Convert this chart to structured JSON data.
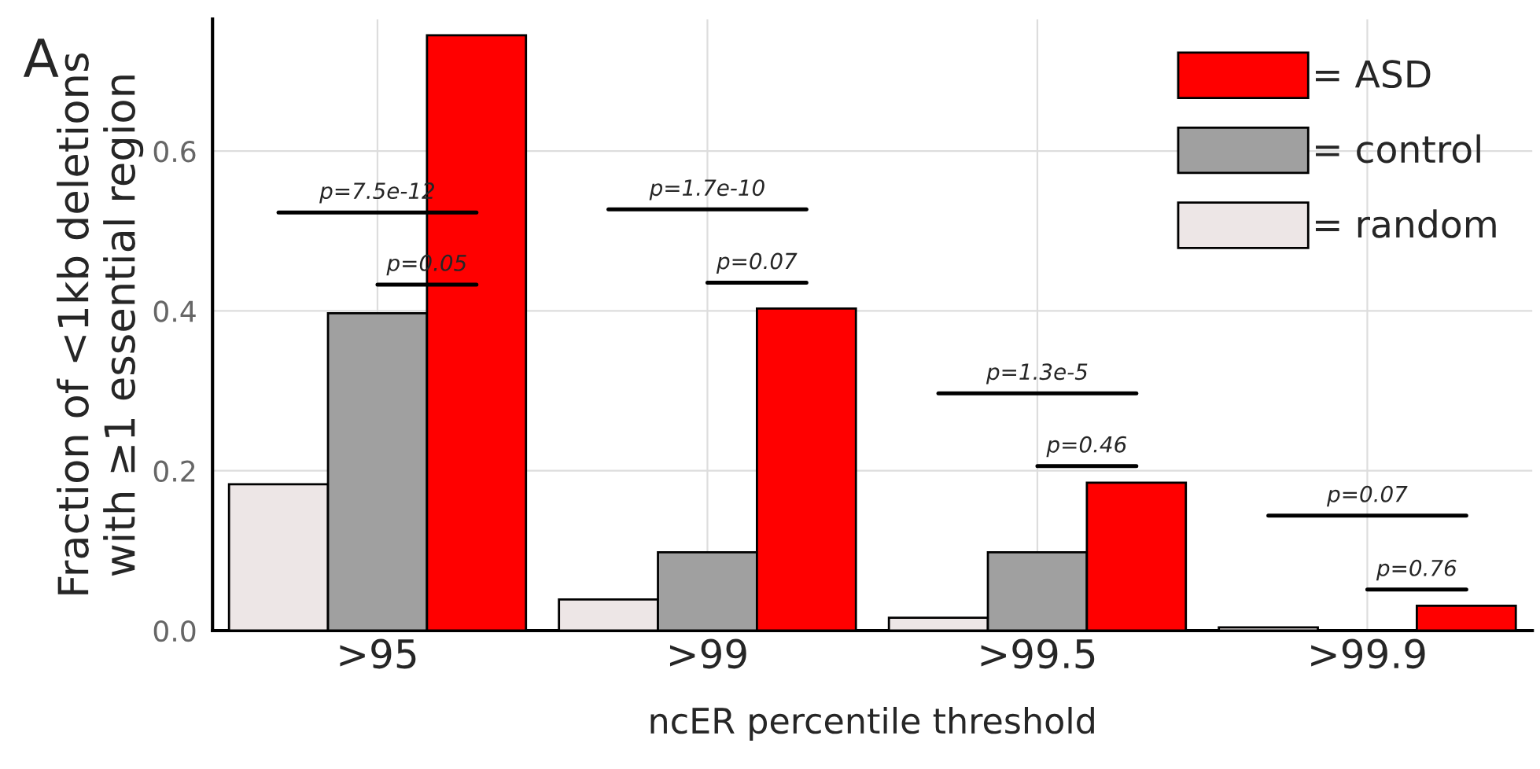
{
  "chart_data": {
    "type": "bar",
    "ylabel": "Fraction of <1kb deletions\nwith ≥1 essential region",
    "xlabel": "ncER percentile threshold",
    "categories": [
      ">95",
      ">99",
      ">99.5",
      ">99.9"
    ],
    "series": [
      {
        "name": "= random",
        "color": "#ede6e6",
        "values": [
          0.183,
          0.039,
          0.016,
          0.004
        ]
      },
      {
        "name": "= control",
        "color": "#a0a0a0",
        "values": [
          0.397,
          0.098,
          0.098,
          null
        ]
      },
      {
        "name": "= ASD",
        "color": "#ff0000",
        "values": [
          0.745,
          0.403,
          0.185,
          0.031
        ]
      }
    ],
    "ylim": [
      0,
      0.765
    ],
    "yticks": [
      {
        "value": 0,
        "label": "0.0"
      },
      0.2,
      0.4,
      0.6
    ],
    "grid": true,
    "legend": "top right",
    "annotations": [
      "A",
      "p=7.5e-12",
      "p=0.05",
      "p=1.7e-10",
      "p=0.07",
      "p=1.3e-5",
      "p=0.46",
      "p=0.07",
      "p=0.76"
    ]
  }
}
